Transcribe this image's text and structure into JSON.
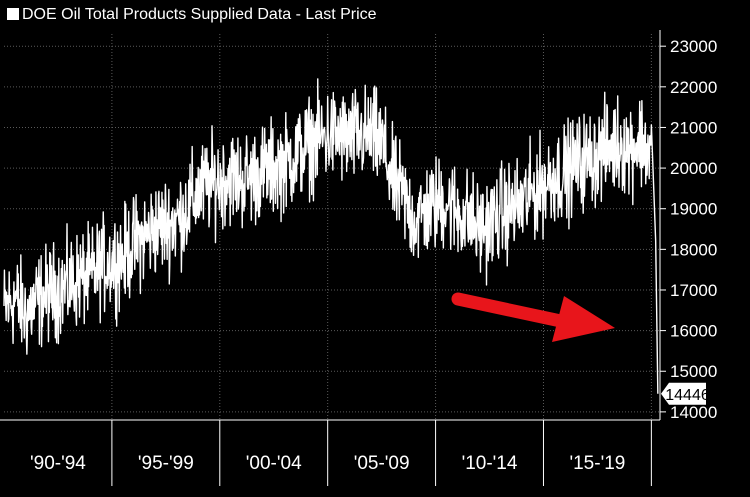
{
  "chart_data": {
    "type": "line",
    "title": "DOE Oil Total Products Supplied Data - Last Price",
    "ylim": [
      13800,
      23300
    ],
    "yticks": [
      14000,
      15000,
      16000,
      17000,
      18000,
      19000,
      20000,
      21000,
      22000,
      23000
    ],
    "period_labels": [
      "'90-'94",
      "'95-'99",
      "'00-'04",
      "'05-'09",
      "'10-'14",
      "'15-'19"
    ],
    "x_start": 1990.0,
    "x_end": 2020.4,
    "last_value": 14446,
    "legend_swatch_color": "#ffffff",
    "line_color": "#ffffff",
    "arrow_color": "#e8151b",
    "grid": true,
    "series": [
      {
        "x": [
          1990.0,
          1990.5,
          1991.0,
          1991.5,
          1992.0,
          1992.5,
          1993.0,
          1993.5,
          1994.0,
          1994.5,
          1995.0,
          1995.5,
          1996.0,
          1996.5,
          1997.0,
          1997.5,
          1998.0,
          1998.5,
          1999.0,
          1999.5,
          2000.0,
          2000.5,
          2001.0,
          2001.5,
          2002.0,
          2002.5,
          2003.0,
          2003.5,
          2004.0,
          2004.5,
          2005.0,
          2005.5,
          2006.0,
          2006.5,
          2007.0,
          2007.5,
          2008.0,
          2008.5,
          2009.0,
          2009.5,
          2010.0,
          2010.5,
          2011.0,
          2011.5,
          2012.0,
          2012.5,
          2013.0,
          2013.5,
          2014.0,
          2014.5,
          2015.0,
          2015.5,
          2016.0,
          2016.5,
          2017.0,
          2017.5,
          2018.0,
          2018.5,
          2019.0,
          2019.5,
          2020.0,
          2020.2,
          2020.3
        ],
        "values": [
          16500,
          16800,
          16400,
          16700,
          16900,
          17000,
          17100,
          17300,
          17300,
          17600,
          17700,
          17800,
          18100,
          18300,
          18500,
          18600,
          18700,
          19000,
          19400,
          19600,
          19700,
          19800,
          19700,
          19800,
          19900,
          20000,
          20100,
          20300,
          20500,
          20700,
          20800,
          20800,
          20700,
          20800,
          20800,
          20600,
          19700,
          19300,
          18700,
          18900,
          19100,
          19200,
          18900,
          18800,
          18500,
          18600,
          18900,
          19000,
          19100,
          19400,
          19600,
          19800,
          19900,
          20100,
          20200,
          20300,
          20500,
          20600,
          20500,
          20700,
          20300,
          18200,
          14446
        ]
      }
    ]
  }
}
